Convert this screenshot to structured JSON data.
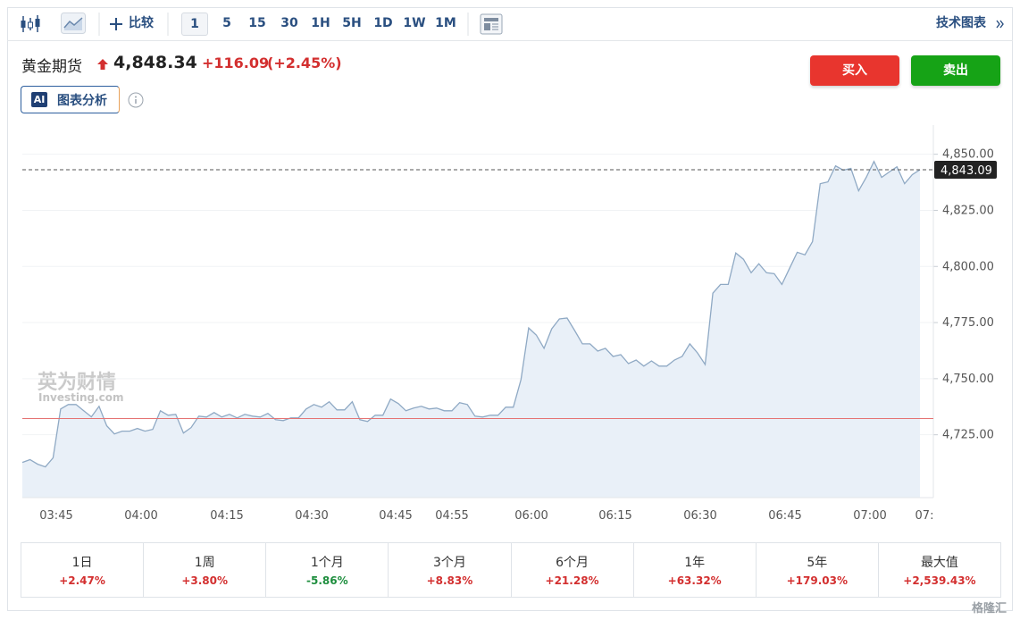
{
  "toolbar": {
    "compare": "比较",
    "intervals": [
      "1",
      "5",
      "15",
      "30",
      "1H",
      "5H",
      "1D",
      "1W",
      "1M"
    ],
    "selected_interval": "1",
    "technical": "技术图表"
  },
  "header": {
    "name": "黄金期货",
    "price": "4,848.34",
    "change": "+116.09",
    "change_pct": "(+2.45%)",
    "ai_badge": "AI",
    "analysis": "图表分析"
  },
  "buttons": {
    "buy": "买入",
    "sell": "卖出"
  },
  "chart_data": {
    "type": "area",
    "color": "#8fa9c4",
    "fill": "#e9f0f8",
    "x_tick_labels": [
      "03:45",
      "04:00",
      "04:15",
      "04:30",
      "04:45",
      "04:55",
      "06:00",
      "06:15",
      "06:30",
      "06:45",
      "07:00",
      "07:"
    ],
    "values": [
      4712.7,
      4713.9,
      4711.9,
      4710.7,
      4714.7,
      4736.5,
      4738.5,
      4738.5,
      4735.7,
      4733.0,
      4737.7,
      4729.0,
      4725.4,
      4726.6,
      4726.6,
      4727.8,
      4726.6,
      4727.4,
      4735.7,
      4733.7,
      4734.1,
      4725.8,
      4728.2,
      4733.3,
      4732.9,
      4734.9,
      4732.9,
      4734.1,
      4732.5,
      4734.1,
      4733.3,
      4732.9,
      4734.5,
      4731.7,
      4731.3,
      4732.5,
      4732.5,
      4736.5,
      4738.5,
      4737.3,
      4739.7,
      4736.1,
      4736.1,
      4739.7,
      4731.7,
      4730.9,
      4733.7,
      4733.7,
      4740.9,
      4738.9,
      4735.7,
      4736.9,
      4737.7,
      4736.5,
      4736.9,
      4735.7,
      4735.7,
      4739.3,
      4738.5,
      4733.3,
      4732.9,
      4733.7,
      4733.7,
      4737.3,
      4737.3,
      4749.6,
      4772.6,
      4769.4,
      4763.5,
      4772.2,
      4776.6,
      4777.0,
      4771.4,
      4765.5,
      4765.5,
      4762.3,
      4763.5,
      4759.9,
      4760.7,
      4756.7,
      4758.3,
      4755.6,
      4757.9,
      4755.6,
      4755.6,
      4758.3,
      4759.9,
      4765.5,
      4761.5,
      4756.3,
      4788.1,
      4792.0,
      4792.0,
      4806.0,
      4803.2,
      4797.2,
      4801.2,
      4797.2,
      4796.8,
      4792.0,
      4799.2,
      4806.3,
      4805.2,
      4811.1,
      4836.9,
      4837.7,
      4844.8,
      4842.9,
      4843.7,
      4833.7,
      4839.7,
      4846.8,
      4839.7,
      4842.1,
      4844.4,
      4836.9,
      4840.9,
      4843.09
    ],
    "ylim": [
      4697,
      4863
    ],
    "yticks": [
      {
        "value": 4725,
        "label": "4,725.00"
      },
      {
        "value": 4750,
        "label": "4,750.00"
      },
      {
        "value": 4775,
        "label": "4,775.00"
      },
      {
        "value": 4800,
        "label": "4,800.00"
      },
      {
        "value": 4825,
        "label": "4,825.00"
      },
      {
        "value": 4850,
        "label": "4,850.00"
      }
    ],
    "last_price": {
      "value": 4843.09,
      "label": "4,843.09"
    },
    "reference_line": 4732.25,
    "reference_color": "#e57373",
    "grid": true,
    "watermark": [
      "英为财情",
      "Investing.com"
    ]
  },
  "performance": [
    {
      "period": "1日",
      "change": "+2.47%"
    },
    {
      "period": "1周",
      "change": "+3.80%"
    },
    {
      "period": "1个月",
      "change": "-5.86%"
    },
    {
      "period": "3个月",
      "change": "+8.83%"
    },
    {
      "period": "6个月",
      "change": "+21.28%"
    },
    {
      "period": "1年",
      "change": "+63.32%"
    },
    {
      "period": "5年",
      "change": "+179.03%"
    },
    {
      "period": "最大值",
      "change": "+2,539.43%"
    }
  ],
  "corner_watermark": "格隆汇"
}
